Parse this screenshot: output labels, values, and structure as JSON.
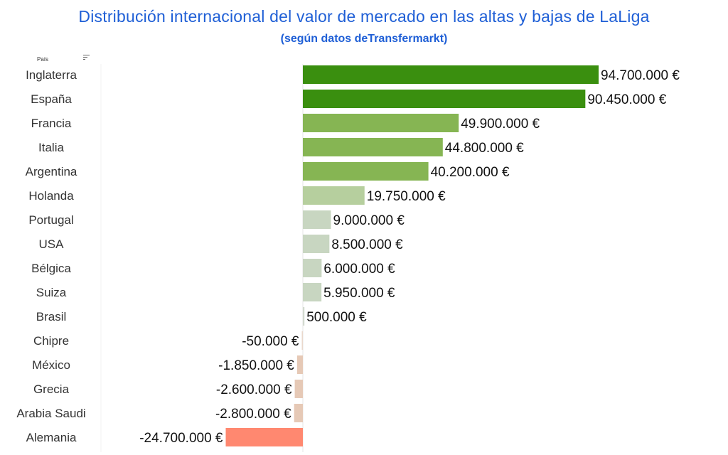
{
  "chart_data": {
    "type": "bar",
    "orientation": "horizontal",
    "title": "Distribución internacional del valor de mercado en las altas y bajas de LaLiga",
    "subtitle": "(según datos deTransfermarkt)",
    "header": "País",
    "categories": [
      "Inglaterra",
      "España",
      "Francia",
      "Italia",
      "Argentina",
      "Holanda",
      "Portugal",
      "USA",
      "Bélgica",
      "Suiza",
      "Brasil",
      "Chipre",
      "México",
      "Grecia",
      "Arabia Saudi",
      "Alemania"
    ],
    "values": [
      94700000,
      90450000,
      49900000,
      44800000,
      40200000,
      19750000,
      9000000,
      8500000,
      6000000,
      5950000,
      500000,
      -50000,
      -1850000,
      -2600000,
      -2800000,
      -24700000
    ],
    "value_labels": [
      "94.700.000 €",
      "90.450.000 €",
      "49.900.000 €",
      "44.800.000 €",
      "40.200.000 €",
      "19.750.000 €",
      "9.000.000 €",
      "8.500.000 €",
      "6.000.000 €",
      "5.950.000 €",
      "500.000 €",
      "-50.000 €",
      "-1.850.000 €",
      "-2.600.000 €",
      "-2.800.000 €",
      "-24.700.000 €"
    ],
    "colors": [
      "#3a8f0f",
      "#3a8f0f",
      "#86b553",
      "#86b553",
      "#86b553",
      "#b6cf9e",
      "#c8d6c1",
      "#c8d6c1",
      "#c8d6c1",
      "#c8d6c1",
      "#d3dacf",
      "#ead8cc",
      "#e6c9b6",
      "#e6c9b6",
      "#e6c9b6",
      "#ff8870"
    ],
    "grid": false
  }
}
